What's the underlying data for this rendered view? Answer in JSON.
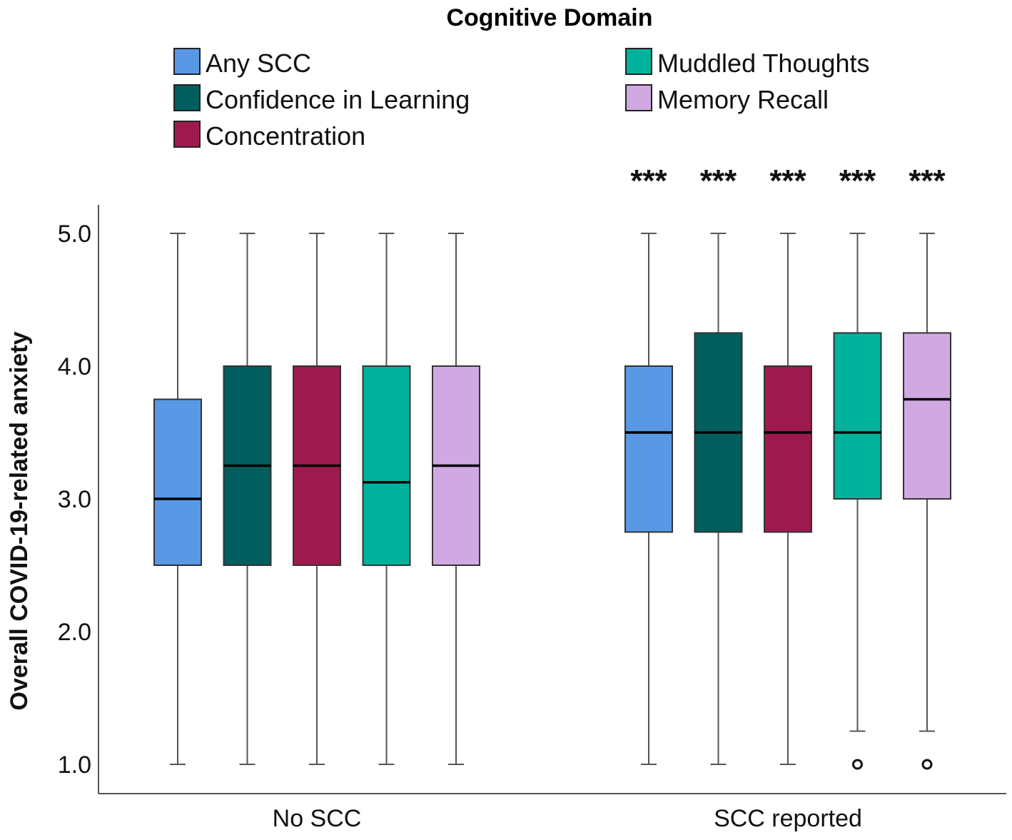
{
  "chart_data": {
    "type": "boxplot",
    "legend_title": "Cognitive Domain",
    "legend_placement": "top",
    "ylabel": "Overall COVID-19-related anxiety",
    "xlabel": "",
    "ylim": [
      0.8,
      5.25
    ],
    "yticks": [
      1.0,
      2.0,
      3.0,
      4.0,
      5.0
    ],
    "ytick_labels": [
      "1.0",
      "2.0",
      "3.0",
      "4.0",
      "5.0"
    ],
    "categories": [
      "No SCC",
      "SCC reported"
    ],
    "significance": [
      "",
      "***"
    ],
    "series": [
      {
        "name": "Any SCC",
        "color": "#5898e5",
        "boxes": [
          {
            "min": 1.0,
            "q1": 2.5,
            "median": 3.0,
            "q3": 3.75,
            "max": 5.0,
            "outliers": []
          },
          {
            "min": 1.0,
            "q1": 2.75,
            "median": 3.5,
            "q3": 4.0,
            "max": 5.0,
            "outliers": []
          }
        ]
      },
      {
        "name": "Confidence in Learning",
        "color": "#015e5e",
        "boxes": [
          {
            "min": 1.0,
            "q1": 2.5,
            "median": 3.25,
            "q3": 4.0,
            "max": 5.0,
            "outliers": []
          },
          {
            "min": 1.0,
            "q1": 2.75,
            "median": 3.5,
            "q3": 4.25,
            "max": 5.0,
            "outliers": []
          }
        ]
      },
      {
        "name": "Concentration",
        "color": "#9e1a4e",
        "boxes": [
          {
            "min": 1.0,
            "q1": 2.5,
            "median": 3.25,
            "q3": 4.0,
            "max": 5.0,
            "outliers": []
          },
          {
            "min": 1.0,
            "q1": 2.75,
            "median": 3.5,
            "q3": 4.0,
            "max": 5.0,
            "outliers": []
          }
        ]
      },
      {
        "name": "Muddled Thoughts",
        "color": "#00b29b",
        "boxes": [
          {
            "min": 1.0,
            "q1": 2.5,
            "median": 3.125,
            "q3": 4.0,
            "max": 5.0,
            "outliers": []
          },
          {
            "min": 1.25,
            "q1": 3.0,
            "median": 3.5,
            "q3": 4.25,
            "max": 5.0,
            "outliers": [
              1.0
            ]
          }
        ]
      },
      {
        "name": "Memory Recall",
        "color": "#d1a9e2",
        "boxes": [
          {
            "min": 1.0,
            "q1": 2.5,
            "median": 3.25,
            "q3": 4.0,
            "max": 5.0,
            "outliers": []
          },
          {
            "min": 1.25,
            "q1": 3.0,
            "median": 3.75,
            "q3": 4.25,
            "max": 5.0,
            "outliers": [
              1.0
            ]
          }
        ]
      }
    ]
  }
}
